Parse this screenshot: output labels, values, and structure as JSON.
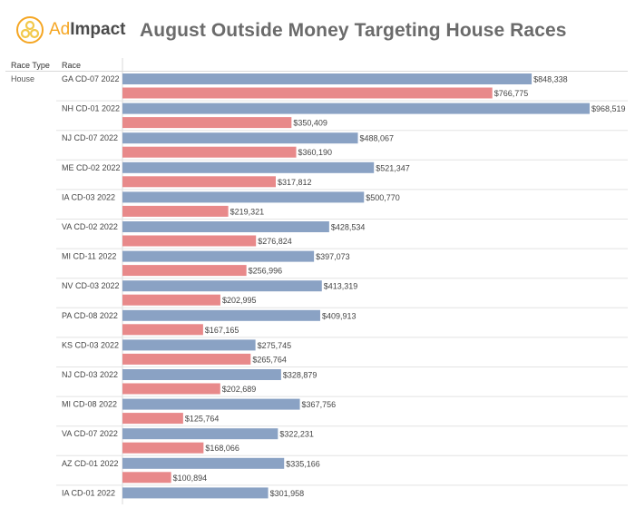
{
  "header": {
    "logo_ad": "Ad",
    "logo_impact": "Impact",
    "title": "August Outside Money Targeting House Races"
  },
  "columns": {
    "race_type": "Race Type",
    "race": "Race"
  },
  "race_type_value": "House",
  "colors": {
    "series_blue": "#8aa2c4",
    "series_red": "#e8898a",
    "logo_orange": "#f5a623",
    "logo_yellow": "#f2c94c"
  },
  "chart_data": {
    "type": "bar",
    "orientation": "horizontal",
    "categories": [
      "GA CD-07 2022",
      "NH CD-01 2022",
      "NJ CD-07 2022",
      "ME CD-02 2022",
      "IA CD-03 2022",
      "VA CD-02 2022",
      "MI CD-11 2022",
      "NV CD-03 2022",
      "PA CD-08 2022",
      "KS CD-03 2022",
      "NJ CD-03 2022",
      "MI CD-08 2022",
      "VA CD-07 2022",
      "AZ CD-01 2022",
      "IA CD-01 2022"
    ],
    "series": [
      {
        "color": "#8aa2c4",
        "values": [
          848338,
          968519,
          488067,
          521347,
          500770,
          428534,
          397073,
          413319,
          409913,
          275745,
          328879,
          367756,
          322231,
          335166,
          301958
        ]
      },
      {
        "color": "#e8898a",
        "values": [
          766775,
          350409,
          360190,
          317812,
          219321,
          276824,
          256996,
          202995,
          167165,
          265764,
          202689,
          125764,
          168066,
          100894,
          null
        ]
      }
    ],
    "value_labels": [
      [
        "$848,338",
        "$766,775"
      ],
      [
        "$968,519",
        "$350,409"
      ],
      [
        "$488,067",
        "$360,190"
      ],
      [
        "$521,347",
        "$317,812"
      ],
      [
        "$500,770",
        "$219,321"
      ],
      [
        "$428,534",
        "$276,824"
      ],
      [
        "$397,073",
        "$256,996"
      ],
      [
        "$413,319",
        "$202,995"
      ],
      [
        "$409,913",
        "$167,165"
      ],
      [
        "$275,745",
        "$265,764"
      ],
      [
        "$328,879",
        "$202,689"
      ],
      [
        "$367,756",
        "$125,764"
      ],
      [
        "$322,231",
        "$168,066"
      ],
      [
        "$335,166",
        "$100,894"
      ],
      [
        "$301,958",
        null
      ]
    ],
    "xlim": [
      0,
      1000000
    ],
    "grid": false,
    "legend": "none"
  }
}
